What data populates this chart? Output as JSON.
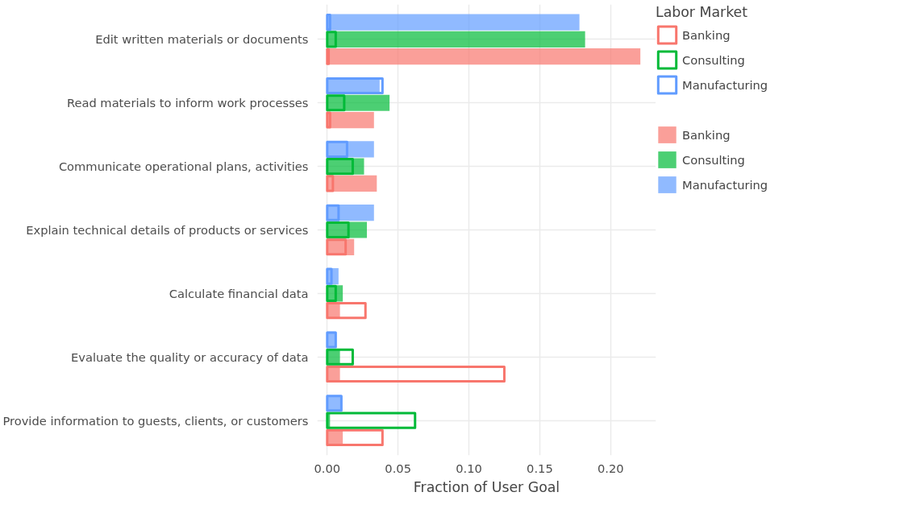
{
  "chart_data": {
    "type": "bar",
    "orientation": "horizontal",
    "xlabel": "Fraction of User Goal",
    "legend_title": "Labor Market",
    "legend": "right",
    "grid": true,
    "categories": [
      "Edit written materials or documents",
      "Read materials to inform work processes",
      "Communicate operational plans, activities",
      "Explain technical details of products or services",
      "Calculate financial data",
      "Evaluate the quality or accuracy of data",
      "Provide information to guests, clients, or customers"
    ],
    "xlim": [
      -0.007,
      0.232
    ],
    "xticks": [
      {
        "value": 0,
        "label": "0.00"
      },
      {
        "value": 0.05,
        "label": "0.05"
      },
      {
        "value": 0.1,
        "label": "0.10"
      },
      {
        "value": 0.15,
        "label": "0.15"
      },
      {
        "value": 0.2,
        "label": "0.20"
      }
    ],
    "series": [
      {
        "name": "Banking",
        "color": "#f8766d",
        "line_style": "solid",
        "values": [
          0.001,
          0.002,
          0.004,
          0.013,
          0.027,
          0.125,
          0.039
        ]
      },
      {
        "name": "Consulting",
        "color": "#00ba38",
        "line_style": "solid",
        "values": [
          0.006,
          0.012,
          0.018,
          0.015,
          0.006,
          0.018,
          0.062
        ]
      },
      {
        "name": "Manufacturing",
        "color": "#619cff",
        "line_style": "solid",
        "values": [
          0.002,
          0.039,
          0.014,
          0.008,
          0.003,
          0.006,
          0.01
        ]
      },
      {
        "name": "Banking",
        "color": "#f8766d",
        "values": [
          0.221,
          0.033,
          0.035,
          0.019,
          0.009,
          0.009,
          0.011
        ]
      },
      {
        "name": "Consulting",
        "color": "#00ba38",
        "values": [
          0.182,
          0.044,
          0.026,
          0.028,
          0.011,
          0.009,
          0.002
        ]
      },
      {
        "name": "Manufacturing",
        "color": "#619cff",
        "values": [
          0.178,
          0.037,
          0.033,
          0.033,
          0.008,
          0.006,
          0.01
        ]
      }
    ]
  }
}
